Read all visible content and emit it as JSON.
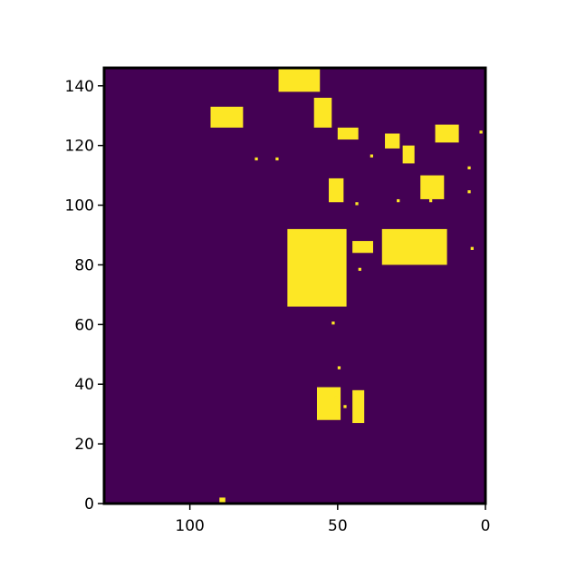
{
  "chart_data": {
    "type": "heatmap",
    "title": "",
    "xlabel": "",
    "ylabel": "",
    "xlim": [
      129,
      0
    ],
    "ylim": [
      0,
      146
    ],
    "x_inverted": true,
    "x_ticks": [
      100,
      50,
      0
    ],
    "y_ticks": [
      0,
      20,
      40,
      60,
      80,
      100,
      120,
      140
    ],
    "x_tick_labels": [
      "100",
      "50",
      "0"
    ],
    "y_tick_labels": [
      "0",
      "20",
      "40",
      "60",
      "80",
      "100",
      "120",
      "140"
    ],
    "colormap": "viridis",
    "background_value": 0,
    "foreground_value": 1,
    "colors": {
      "background": "#440154",
      "foreground": "#fde725"
    },
    "regions": [
      {
        "x": [
          56,
          70
        ],
        "y": [
          138,
          146
        ]
      },
      {
        "x": [
          52,
          58
        ],
        "y": [
          126,
          136
        ]
      },
      {
        "x": [
          43,
          50
        ],
        "y": [
          122,
          126
        ]
      },
      {
        "x": [
          82,
          93
        ],
        "y": [
          126,
          133
        ]
      },
      {
        "x": [
          29,
          34
        ],
        "y": [
          119,
          124
        ]
      },
      {
        "x": [
          24,
          28
        ],
        "y": [
          114,
          120
        ]
      },
      {
        "x": [
          9,
          17
        ],
        "y": [
          121,
          127
        ]
      },
      {
        "x": [
          14,
          22
        ],
        "y": [
          102,
          110
        ]
      },
      {
        "x": [
          48,
          53
        ],
        "y": [
          101,
          109
        ]
      },
      {
        "x": [
          47,
          67
        ],
        "y": [
          66,
          92
        ]
      },
      {
        "x": [
          13,
          35
        ],
        "y": [
          80,
          92
        ]
      },
      {
        "x": [
          38,
          45
        ],
        "y": [
          84,
          88
        ]
      },
      {
        "x": [
          41,
          45
        ],
        "y": [
          27,
          38
        ]
      },
      {
        "x": [
          49,
          57
        ],
        "y": [
          28,
          39
        ]
      },
      {
        "x": [
          88,
          90
        ],
        "y": [
          0,
          2
        ]
      }
    ],
    "isolated_pixels": [
      [
        77,
        115
      ],
      [
        70,
        115
      ],
      [
        38,
        116
      ],
      [
        1,
        124
      ],
      [
        5,
        112
      ],
      [
        5,
        104
      ],
      [
        29,
        101
      ],
      [
        18,
        101
      ],
      [
        43,
        100
      ],
      [
        4,
        85
      ],
      [
        42,
        78
      ],
      [
        51,
        60
      ],
      [
        49,
        45
      ],
      [
        50,
        35
      ],
      [
        47,
        32
      ]
    ]
  }
}
